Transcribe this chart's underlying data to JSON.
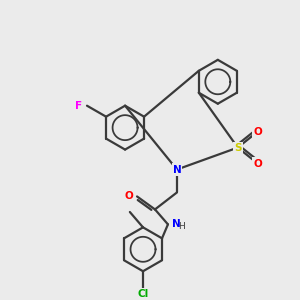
{
  "bg": "#ebebeb",
  "bond_color": "#3a3a3a",
  "lw": 1.6,
  "atom_colors": {
    "N": "#0000ff",
    "S": "#cccc00",
    "O": "#ff0000",
    "F": "#ff00ff",
    "Cl": "#00aa00",
    "C": "#3a3a3a",
    "H": "#3a3a3a"
  },
  "font_size": 7.5,
  "figsize": [
    3.0,
    3.0
  ],
  "dpi": 100
}
